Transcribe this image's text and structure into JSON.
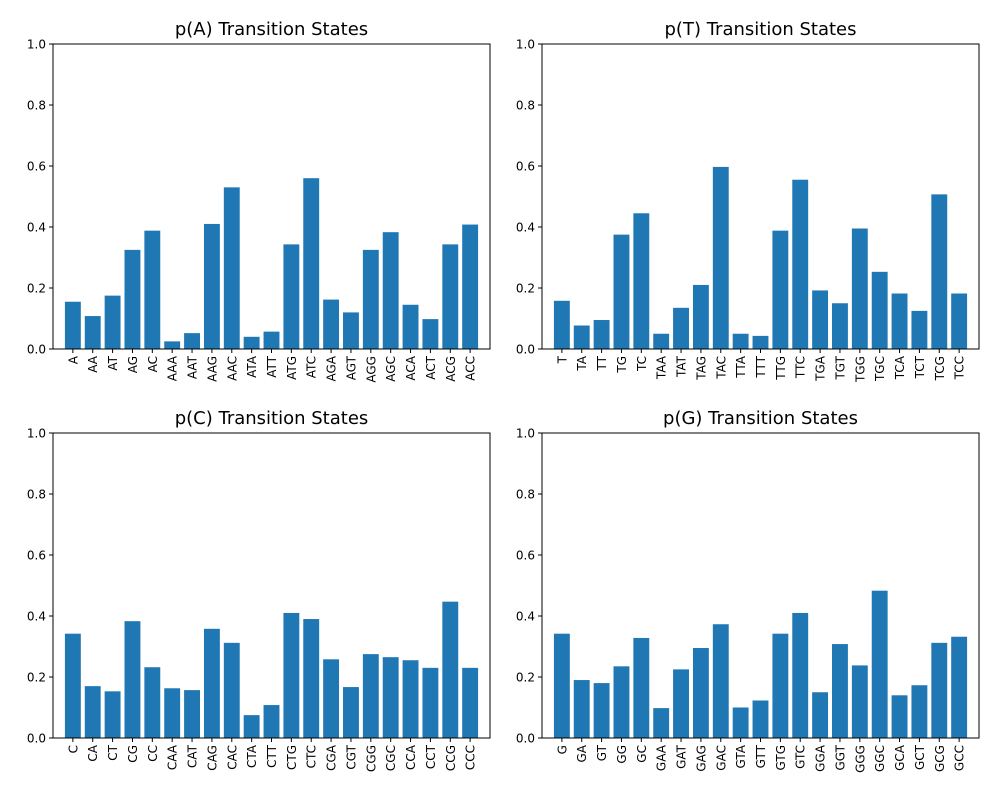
{
  "chart_data": [
    {
      "type": "bar",
      "title": "p(A) Transition States",
      "xlabel": "",
      "ylabel": "",
      "ylim": [
        0,
        1
      ],
      "yticks": [
        "0.0",
        "0.2",
        "0.4",
        "0.6",
        "0.8",
        "1.0"
      ],
      "grid": false,
      "bar_color": "#1f77b4",
      "categories": [
        "A",
        "AA",
        "AT",
        "AG",
        "AC",
        "AAA",
        "AAT",
        "AAG",
        "AAC",
        "ATA",
        "ATT",
        "ATG",
        "ATC",
        "AGA",
        "AGT",
        "AGG",
        "AGC",
        "ACA",
        "ACT",
        "ACG",
        "ACC"
      ],
      "values": [
        0.155,
        0.108,
        0.175,
        0.325,
        0.388,
        0.025,
        0.052,
        0.41,
        0.53,
        0.04,
        0.057,
        0.343,
        0.56,
        0.162,
        0.12,
        0.325,
        0.383,
        0.145,
        0.098,
        0.343,
        0.408
      ]
    },
    {
      "type": "bar",
      "title": "p(T) Transition States",
      "xlabel": "",
      "ylabel": "",
      "ylim": [
        0,
        1
      ],
      "yticks": [
        "0.0",
        "0.2",
        "0.4",
        "0.6",
        "0.8",
        "1.0"
      ],
      "grid": false,
      "bar_color": "#1f77b4",
      "categories": [
        "T",
        "TA",
        "TT",
        "TG",
        "TC",
        "TAA",
        "TAT",
        "TAG",
        "TAC",
        "TTA",
        "TTT",
        "TTG",
        "TTC",
        "TGA",
        "TGT",
        "TGG",
        "TGC",
        "TCA",
        "TCT",
        "TCG",
        "TCC"
      ],
      "values": [
        0.158,
        0.077,
        0.095,
        0.375,
        0.445,
        0.05,
        0.135,
        0.21,
        0.597,
        0.05,
        0.043,
        0.388,
        0.555,
        0.192,
        0.15,
        0.395,
        0.253,
        0.182,
        0.125,
        0.507,
        0.182
      ]
    },
    {
      "type": "bar",
      "title": "p(C) Transition States",
      "xlabel": "",
      "ylabel": "",
      "ylim": [
        0,
        1
      ],
      "yticks": [
        "0.0",
        "0.2",
        "0.4",
        "0.6",
        "0.8",
        "1.0"
      ],
      "grid": false,
      "bar_color": "#1f77b4",
      "categories": [
        "C",
        "CA",
        "CT",
        "CG",
        "CC",
        "CAA",
        "CAT",
        "CAG",
        "CAC",
        "CTA",
        "CTT",
        "CTG",
        "CTC",
        "CGA",
        "CGT",
        "CGG",
        "CGC",
        "CCA",
        "CCT",
        "CCG",
        "CCC"
      ],
      "values": [
        0.342,
        0.17,
        0.153,
        0.383,
        0.232,
        0.163,
        0.157,
        0.358,
        0.312,
        0.075,
        0.108,
        0.41,
        0.39,
        0.258,
        0.167,
        0.275,
        0.265,
        0.255,
        0.23,
        0.447,
        0.23
      ]
    },
    {
      "type": "bar",
      "title": "p(G) Transition States",
      "xlabel": "",
      "ylabel": "",
      "ylim": [
        0,
        1
      ],
      "yticks": [
        "0.0",
        "0.2",
        "0.4",
        "0.6",
        "0.8",
        "1.0"
      ],
      "grid": false,
      "bar_color": "#1f77b4",
      "categories": [
        "G",
        "GA",
        "GT",
        "GG",
        "GC",
        "GAA",
        "GAT",
        "GAG",
        "GAC",
        "GTA",
        "GTT",
        "GTG",
        "GTC",
        "GGA",
        "GGT",
        "GGG",
        "GGC",
        "GCA",
        "GCT",
        "GCG",
        "GCC"
      ],
      "values": [
        0.342,
        0.19,
        0.18,
        0.235,
        0.328,
        0.098,
        0.225,
        0.295,
        0.373,
        0.1,
        0.123,
        0.342,
        0.41,
        0.15,
        0.308,
        0.238,
        0.483,
        0.14,
        0.173,
        0.312,
        0.332
      ]
    }
  ]
}
